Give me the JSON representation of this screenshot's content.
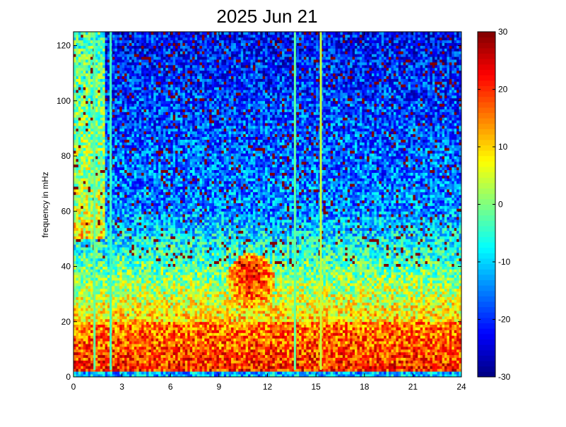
{
  "chart_data": {
    "type": "heatmap",
    "title": "2025 Jun 21",
    "xlabel": "",
    "ylabel": "frequency in mHz",
    "xlim": [
      0,
      24
    ],
    "ylim": [
      0,
      125
    ],
    "x_ticks": [
      0,
      3,
      6,
      9,
      12,
      15,
      18,
      21,
      24
    ],
    "y_ticks": [
      0,
      20,
      40,
      60,
      80,
      100,
      120
    ],
    "colorbar": {
      "range": [
        -30,
        30
      ],
      "ticks": [
        -30,
        -20,
        -10,
        0,
        10,
        20,
        30
      ],
      "colormap": "jet"
    },
    "grid": false,
    "description_of_structure": {
      "low_frequency_band": {
        "y_range": [
          2,
          20
        ],
        "level": 18
      },
      "bottom_strip": {
        "y_range": [
          0,
          2
        ],
        "level": -12
      },
      "mid_band": {
        "y_range": [
          20,
          60
        ],
        "level": 0
      },
      "upper_band": {
        "y_range": [
          60,
          125
        ],
        "level": -20
      },
      "hot_blob": {
        "x_range": [
          9.5,
          12.5
        ],
        "y_range": [
          25,
          45
        ],
        "level": 20
      },
      "vertical_lines": [
        {
          "x": 1.3,
          "level": -2
        },
        {
          "x": 2.3,
          "level": -4
        },
        {
          "x": 13.7,
          "level": -2
        },
        {
          "x": 15.3,
          "level": 4
        }
      ]
    }
  }
}
